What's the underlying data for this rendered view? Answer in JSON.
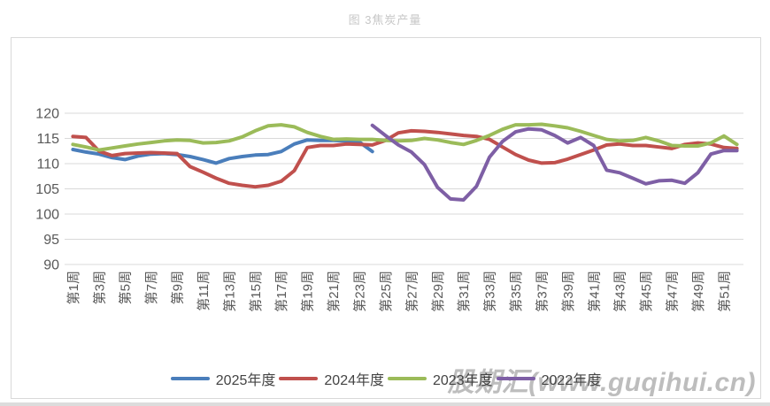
{
  "watermark": {
    "text": "股期汇(www.guqihui.cn)"
  },
  "axis_colors": {
    "tick_label": "#595959",
    "gridline": "#d9d9d9"
  },
  "chart_data": {
    "type": "line",
    "title": "图 3焦炭产量",
    "xlabel": "",
    "ylabel": "",
    "ylim": [
      90,
      120
    ],
    "y_ticks": [
      90,
      95,
      100,
      105,
      110,
      115,
      120
    ],
    "grid": "horizontal",
    "legend_position": "bottom",
    "categories": [
      1,
      2,
      3,
      4,
      5,
      6,
      7,
      8,
      9,
      10,
      11,
      12,
      13,
      14,
      15,
      16,
      17,
      18,
      19,
      20,
      21,
      22,
      23,
      24,
      25,
      26,
      27,
      28,
      29,
      30,
      31,
      32,
      33,
      34,
      35,
      36,
      37,
      38,
      39,
      40,
      41,
      42,
      43,
      44,
      45,
      46,
      47,
      48,
      49,
      50,
      51,
      52
    ],
    "x_tick_labels": [
      "第1周",
      "第3周",
      "第5周",
      "第7周",
      "第9周",
      "第11周",
      "第13周",
      "第15周",
      "第17周",
      "第19周",
      "第21周",
      "第23周",
      "第25周",
      "第27周",
      "第29周",
      "第31周",
      "第33周",
      "第35周",
      "第37周",
      "第39周",
      "第41周",
      "第43周",
      "第45周",
      "第47周",
      "第49周",
      "第51周"
    ],
    "series": [
      {
        "name": "2025年度",
        "color": "#4a7ebb",
        "values": [
          112.8,
          112.3,
          111.9,
          111.2,
          110.8,
          111.5,
          111.9,
          112.0,
          111.8,
          111.4,
          110.8,
          110.1,
          111.0,
          111.4,
          111.7,
          111.8,
          112.4,
          113.9,
          114.7,
          114.6,
          114.6,
          114.5,
          114.3,
          112.4,
          null,
          null,
          null,
          null,
          null,
          null,
          null,
          null,
          null,
          null,
          null,
          null,
          null,
          null,
          null,
          null,
          null,
          null,
          null,
          null,
          null,
          null,
          null,
          null,
          null,
          null,
          null,
          null
        ]
      },
      {
        "name": "2024年度",
        "color": "#c0504d",
        "values": [
          115.4,
          115.2,
          112.5,
          111.6,
          112.0,
          112.1,
          112.2,
          112.1,
          112.0,
          109.4,
          108.3,
          107.1,
          106.1,
          105.7,
          105.4,
          105.7,
          106.5,
          108.6,
          113.2,
          113.6,
          113.6,
          113.9,
          113.8,
          113.7,
          114.6,
          116.1,
          116.5,
          116.4,
          116.2,
          115.9,
          115.6,
          115.4,
          114.8,
          113.3,
          111.8,
          110.7,
          110.1,
          110.2,
          110.9,
          111.8,
          112.7,
          113.7,
          113.9,
          113.6,
          113.6,
          113.3,
          113.0,
          113.8,
          114.1,
          113.9,
          113.2,
          113.0
        ]
      },
      {
        "name": "2023年度",
        "color": "#9bbb59",
        "values": [
          113.8,
          113.3,
          112.7,
          113.1,
          113.5,
          113.9,
          114.2,
          114.5,
          114.7,
          114.6,
          114.1,
          114.2,
          114.5,
          115.3,
          116.5,
          117.5,
          117.7,
          117.3,
          116.2,
          115.4,
          114.8,
          114.9,
          114.8,
          114.8,
          114.6,
          114.5,
          114.6,
          115.0,
          114.7,
          114.2,
          113.8,
          114.6,
          115.6,
          116.8,
          117.7,
          117.7,
          117.8,
          117.5,
          117.1,
          116.4,
          115.6,
          114.8,
          114.5,
          114.6,
          115.2,
          114.5,
          113.6,
          113.5,
          113.5,
          114.1,
          115.5,
          113.8
        ]
      },
      {
        "name": "2022年度",
        "color": "#7e5fa5",
        "values": [
          null,
          null,
          null,
          null,
          null,
          null,
          null,
          null,
          null,
          null,
          null,
          null,
          null,
          null,
          null,
          null,
          null,
          null,
          null,
          null,
          null,
          null,
          null,
          117.6,
          115.6,
          113.7,
          112.3,
          109.8,
          105.3,
          103.0,
          102.8,
          105.5,
          111.3,
          114.4,
          116.3,
          116.9,
          116.7,
          115.6,
          114.1,
          115.2,
          113.6,
          108.7,
          108.2,
          107.1,
          106.0,
          106.6,
          106.7,
          106.1,
          108.2,
          111.9,
          112.6,
          112.6
        ]
      }
    ]
  }
}
